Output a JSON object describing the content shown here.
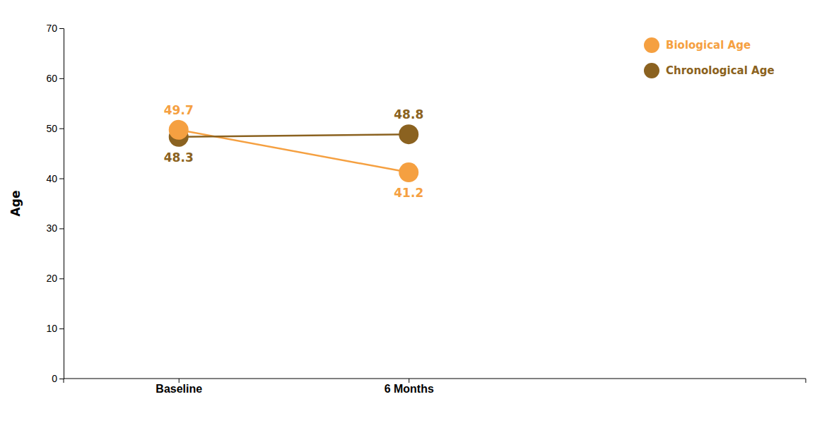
{
  "chart_data": {
    "type": "line",
    "categories": [
      "Baseline",
      "6 Months"
    ],
    "series": [
      {
        "name": "Biological Age",
        "color": "#F5A041",
        "values": [
          49.7,
          41.2
        ]
      },
      {
        "name": "Chronological Age",
        "color": "#8B6220",
        "values": [
          48.3,
          48.8
        ]
      }
    ],
    "marker": "circle",
    "ylabel": "Age",
    "ylim": [
      0,
      70
    ],
    "yticks": [
      0,
      10,
      20,
      30,
      40,
      50,
      60,
      70
    ],
    "grid": false,
    "legend": "upper right",
    "data_labels": true
  }
}
